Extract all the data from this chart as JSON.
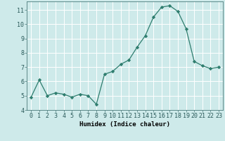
{
  "x": [
    0,
    1,
    2,
    3,
    4,
    5,
    6,
    7,
    8,
    9,
    10,
    11,
    12,
    13,
    14,
    15,
    16,
    17,
    18,
    19,
    20,
    21,
    22,
    23
  ],
  "y": [
    4.9,
    6.1,
    5.0,
    5.2,
    5.1,
    4.9,
    5.1,
    5.0,
    4.4,
    6.5,
    6.7,
    7.2,
    7.5,
    8.4,
    9.2,
    10.5,
    11.2,
    11.3,
    10.9,
    9.7,
    7.4,
    7.1,
    6.9,
    7.0
  ],
  "line_color": "#2e7d6e",
  "marker": "D",
  "marker_size": 2.2,
  "bg_color": "#ceeaea",
  "grid_color": "#ffffff",
  "xlabel": "Humidex (Indice chaleur)",
  "xlim": [
    -0.5,
    23.5
  ],
  "ylim": [
    4,
    11.6
  ],
  "yticks": [
    4,
    5,
    6,
    7,
    8,
    9,
    10,
    11
  ],
  "xticks": [
    0,
    1,
    2,
    3,
    4,
    5,
    6,
    7,
    8,
    9,
    10,
    11,
    12,
    13,
    14,
    15,
    16,
    17,
    18,
    19,
    20,
    21,
    22,
    23
  ],
  "xlabel_fontsize": 6.5,
  "tick_fontsize": 6.0
}
